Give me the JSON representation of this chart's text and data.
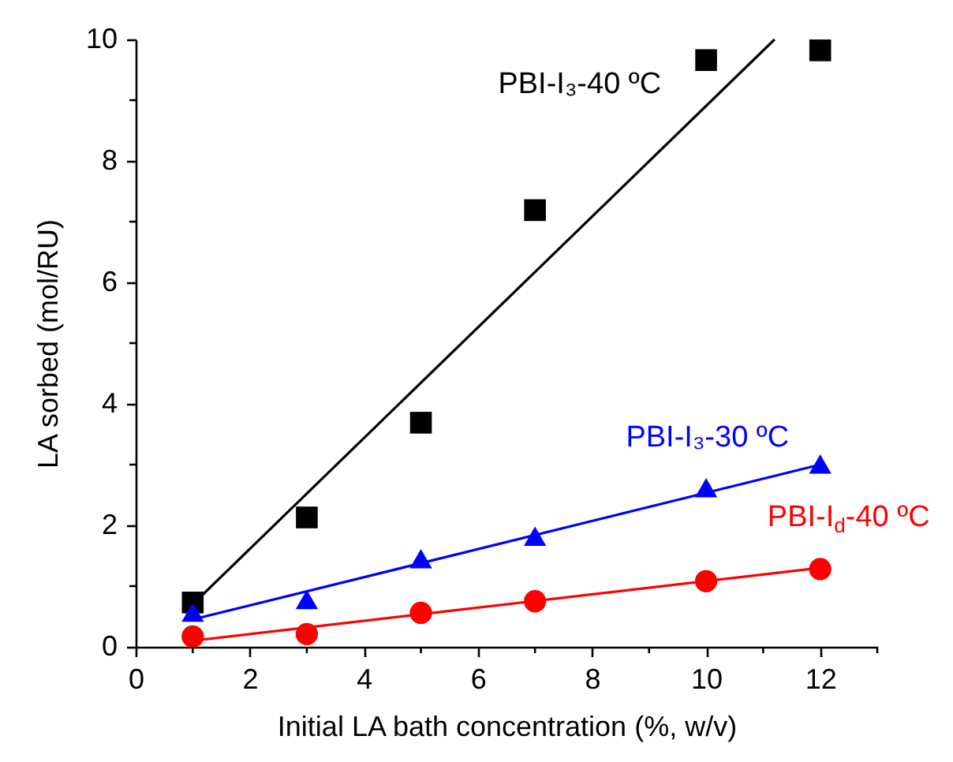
{
  "chart_data": {
    "type": "scatter",
    "xlabel": "Initial LA bath concentration (%, w/v)",
    "ylabel": "LA sorbed (mol/RU)",
    "x": [
      1,
      3,
      5,
      7,
      10,
      12
    ],
    "xlim": [
      0,
      13
    ],
    "ylim": [
      0,
      10
    ],
    "xticks": [
      0,
      {
        "value": 1,
        "label": null
      },
      2,
      {
        "value": 3,
        "label": null
      },
      4,
      {
        "value": 5,
        "label": null
      },
      6,
      {
        "value": 7,
        "label": null
      },
      8,
      {
        "value": 9,
        "label": null
      },
      10,
      {
        "value": 11,
        "label": null
      },
      12,
      {
        "value": 13,
        "label": null
      }
    ],
    "yticks": [
      0,
      {
        "value": 1,
        "label": null
      },
      2,
      {
        "value": 3,
        "label": null
      },
      4,
      {
        "value": 5,
        "label": null
      },
      6,
      {
        "value": 7,
        "label": null
      },
      8,
      {
        "value": 9,
        "label": null
      },
      10
    ],
    "grid": false,
    "series": [
      {
        "name": "PBI-I₃-40 ºC",
        "color": "#000000",
        "marker": "square",
        "values": [
          0.73,
          2.13,
          3.69,
          7.19,
          9.66,
          9.82
        ]
      },
      {
        "name": "PBI-I₃-30 ºC",
        "color": "#0000ff",
        "marker": "triangle",
        "values": [
          0.57,
          0.78,
          1.45,
          1.82,
          2.62,
          3.01
        ]
      },
      {
        "name": "PBI-I$_{d}$-40 ºC",
        "color": "#ff0000",
        "marker": "circle",
        "values": [
          0.17,
          0.21,
          0.56,
          0.75,
          1.08,
          1.28
        ]
      },
      {
        "type": "line",
        "color": "#000000",
        "x": [
          1,
          11.2
        ],
        "values": [
          0.7,
          10
        ]
      },
      {
        "type": "line",
        "color": "#0000ff",
        "x": [
          1,
          12
        ],
        "values": [
          0.45,
          3.0
        ]
      },
      {
        "type": "line",
        "color": "#ff0000",
        "x": [
          1,
          12
        ],
        "values": [
          0.1,
          1.3
        ]
      }
    ]
  }
}
